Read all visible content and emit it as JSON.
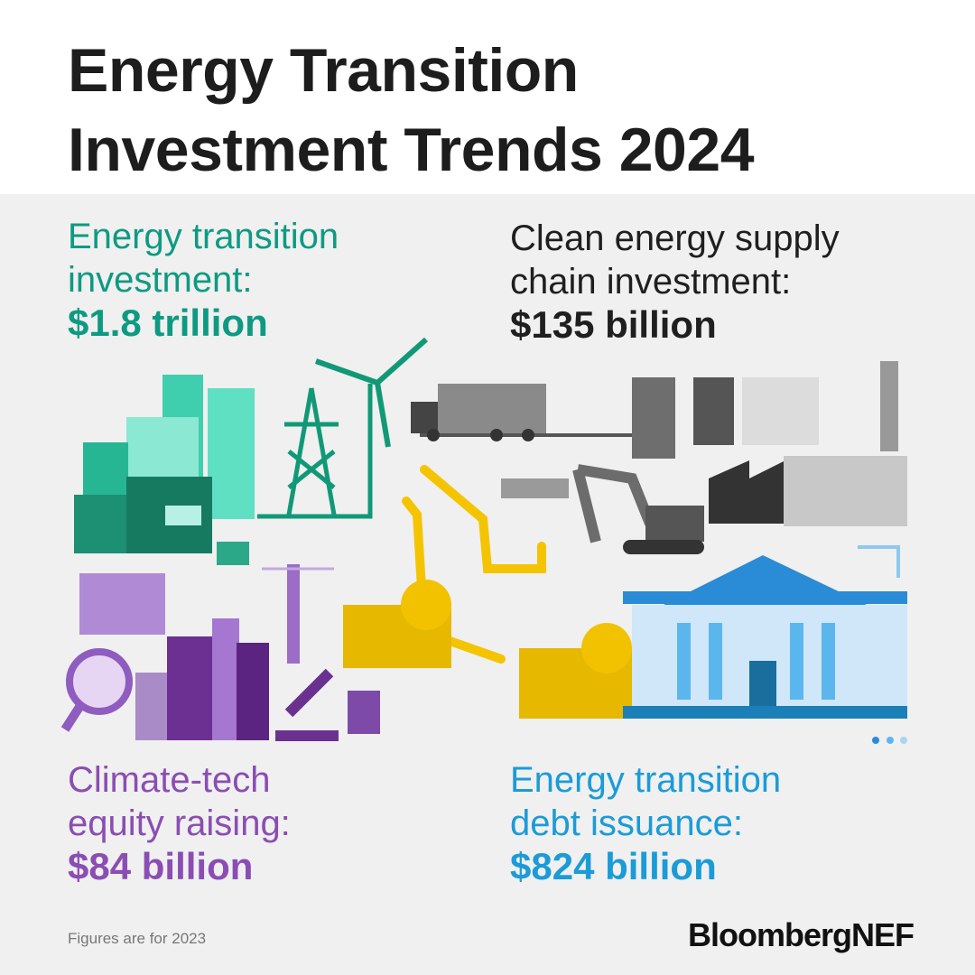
{
  "header": {
    "title_lines": [
      "Energy Transition",
      "Investment Trends 2024"
    ]
  },
  "stats": [
    {
      "label_lines": [
        "Energy transition",
        "investment:"
      ],
      "value": "$1.8 trillion"
    },
    {
      "label_lines": [
        "Clean energy supply",
        "chain investment:"
      ],
      "value": "$135 billion"
    },
    {
      "label_lines": [
        "Climate-tech",
        "equity raising:"
      ],
      "value": "$84 billion"
    },
    {
      "label_lines": [
        "Energy transition",
        "debt issuance:"
      ],
      "value": "$824 billion"
    }
  ],
  "footer": {
    "note": "Figures are for 2023",
    "logo": "BloombergNEF"
  }
}
